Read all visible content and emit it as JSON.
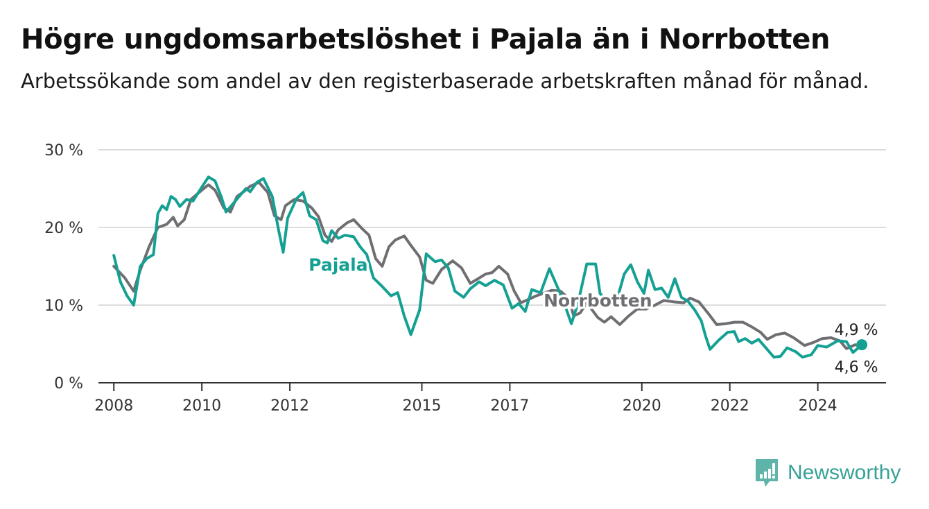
{
  "title": "Högre ungdomsarbetslöshet i Pajala än i Norrbotten",
  "subtitle": "Arbetssökande som andel av den registerbaserade arbetskraften månad för månad.",
  "brand": {
    "name": "Newsworthy",
    "color": "#36a195"
  },
  "chart_data": {
    "type": "line",
    "ylim": [
      0,
      30
    ],
    "yticks": [
      {
        "value": 0,
        "label": "0 %"
      },
      {
        "value": 10,
        "label": "10 %"
      },
      {
        "value": 20,
        "label": "20 %"
      },
      {
        "value": 30,
        "label": "30 %"
      }
    ],
    "xlim": [
      2007.65,
      2025.55
    ],
    "xticks": [
      {
        "value": 2008,
        "label": "2008"
      },
      {
        "value": 2010,
        "label": "2010"
      },
      {
        "value": 2012,
        "label": "2012"
      },
      {
        "value": 2015,
        "label": "2015"
      },
      {
        "value": 2017,
        "label": "2017"
      },
      {
        "value": 2020,
        "label": "2020"
      },
      {
        "value": 2022,
        "label": "2022"
      },
      {
        "value": 2024,
        "label": "2024"
      }
    ],
    "grid": true,
    "series": [
      {
        "name": "Norrbotten",
        "color": "#6f6e72",
        "end_label": "4,6 %",
        "points": [
          [
            2008.0,
            15.0
          ],
          [
            2008.25,
            13.5
          ],
          [
            2008.45,
            11.8
          ],
          [
            2008.6,
            14.5
          ],
          [
            2008.8,
            17.5
          ],
          [
            2009.0,
            20.0
          ],
          [
            2009.2,
            20.4
          ],
          [
            2009.35,
            21.3
          ],
          [
            2009.45,
            20.2
          ],
          [
            2009.6,
            21.0
          ],
          [
            2009.75,
            23.6
          ],
          [
            2010.0,
            24.8
          ],
          [
            2010.15,
            25.5
          ],
          [
            2010.3,
            24.8
          ],
          [
            2010.5,
            22.5
          ],
          [
            2010.65,
            22.0
          ],
          [
            2010.8,
            24.0
          ],
          [
            2010.95,
            24.6
          ],
          [
            2011.1,
            25.3
          ],
          [
            2011.3,
            25.8
          ],
          [
            2011.5,
            24.5
          ],
          [
            2011.65,
            21.5
          ],
          [
            2011.8,
            21.0
          ],
          [
            2011.9,
            22.8
          ],
          [
            2012.1,
            23.6
          ],
          [
            2012.3,
            23.4
          ],
          [
            2012.5,
            22.5
          ],
          [
            2012.65,
            21.4
          ],
          [
            2012.8,
            19.0
          ],
          [
            2012.95,
            18.2
          ],
          [
            2013.1,
            19.7
          ],
          [
            2013.3,
            20.6
          ],
          [
            2013.45,
            21.0
          ],
          [
            2013.65,
            19.8
          ],
          [
            2013.8,
            19.0
          ],
          [
            2013.95,
            16.0
          ],
          [
            2014.1,
            15.0
          ],
          [
            2014.25,
            17.5
          ],
          [
            2014.4,
            18.4
          ],
          [
            2014.6,
            18.9
          ],
          [
            2014.75,
            17.7
          ],
          [
            2014.95,
            16.2
          ],
          [
            2015.1,
            13.2
          ],
          [
            2015.25,
            12.8
          ],
          [
            2015.45,
            14.6
          ],
          [
            2015.7,
            15.7
          ],
          [
            2015.9,
            14.8
          ],
          [
            2016.1,
            12.8
          ],
          [
            2016.25,
            13.3
          ],
          [
            2016.45,
            14.0
          ],
          [
            2016.6,
            14.2
          ],
          [
            2016.75,
            15.0
          ],
          [
            2016.95,
            14.0
          ],
          [
            2017.1,
            11.8
          ],
          [
            2017.25,
            10.3
          ],
          [
            2017.45,
            10.8
          ],
          [
            2017.6,
            11.2
          ],
          [
            2017.75,
            11.5
          ],
          [
            2017.95,
            11.9
          ],
          [
            2018.15,
            11.8
          ],
          [
            2018.35,
            10.8
          ],
          [
            2018.45,
            8.6
          ],
          [
            2018.6,
            9.0
          ],
          [
            2018.75,
            10.3
          ],
          [
            2019.0,
            8.4
          ],
          [
            2019.15,
            7.8
          ],
          [
            2019.3,
            8.5
          ],
          [
            2019.5,
            7.5
          ],
          [
            2019.7,
            8.6
          ],
          [
            2019.9,
            9.5
          ],
          [
            2020.1,
            9.5
          ],
          [
            2020.3,
            10.0
          ],
          [
            2020.5,
            10.6
          ],
          [
            2020.75,
            10.4
          ],
          [
            2020.95,
            10.3
          ],
          [
            2021.1,
            10.9
          ],
          [
            2021.3,
            10.4
          ],
          [
            2021.5,
            9.0
          ],
          [
            2021.7,
            7.5
          ],
          [
            2021.9,
            7.6
          ],
          [
            2022.1,
            7.8
          ],
          [
            2022.3,
            7.8
          ],
          [
            2022.5,
            7.2
          ],
          [
            2022.7,
            6.5
          ],
          [
            2022.85,
            5.6
          ],
          [
            2023.05,
            6.2
          ],
          [
            2023.25,
            6.4
          ],
          [
            2023.45,
            5.8
          ],
          [
            2023.7,
            4.8
          ],
          [
            2023.9,
            5.2
          ],
          [
            2024.1,
            5.7
          ],
          [
            2024.3,
            5.8
          ],
          [
            2024.5,
            5.4
          ],
          [
            2024.65,
            4.4
          ],
          [
            2024.85,
            4.9
          ],
          [
            2025.0,
            4.6
          ]
        ]
      },
      {
        "name": "Pajala",
        "color": "#14a093",
        "end_label": "4,9 %",
        "points": [
          [
            2008.0,
            16.4
          ],
          [
            2008.15,
            13.0
          ],
          [
            2008.3,
            11.2
          ],
          [
            2008.45,
            10.0
          ],
          [
            2008.6,
            15.0
          ],
          [
            2008.75,
            16.0
          ],
          [
            2008.9,
            16.5
          ],
          [
            2009.0,
            21.8
          ],
          [
            2009.1,
            22.8
          ],
          [
            2009.2,
            22.3
          ],
          [
            2009.3,
            24.0
          ],
          [
            2009.4,
            23.6
          ],
          [
            2009.5,
            22.7
          ],
          [
            2009.65,
            23.6
          ],
          [
            2009.8,
            23.4
          ],
          [
            2010.0,
            25.2
          ],
          [
            2010.15,
            26.5
          ],
          [
            2010.3,
            26.0
          ],
          [
            2010.45,
            23.8
          ],
          [
            2010.55,
            22.0
          ],
          [
            2010.7,
            23.0
          ],
          [
            2010.85,
            24.0
          ],
          [
            2011.0,
            25.0
          ],
          [
            2011.1,
            24.6
          ],
          [
            2011.25,
            25.8
          ],
          [
            2011.4,
            26.3
          ],
          [
            2011.6,
            24.0
          ],
          [
            2011.75,
            19.5
          ],
          [
            2011.85,
            16.8
          ],
          [
            2011.95,
            21.2
          ],
          [
            2012.15,
            23.7
          ],
          [
            2012.3,
            24.5
          ],
          [
            2012.45,
            21.5
          ],
          [
            2012.6,
            21.0
          ],
          [
            2012.75,
            18.3
          ],
          [
            2012.85,
            18.0
          ],
          [
            2012.95,
            19.6
          ],
          [
            2013.1,
            18.6
          ],
          [
            2013.25,
            19.0
          ],
          [
            2013.45,
            18.8
          ],
          [
            2013.6,
            17.5
          ],
          [
            2013.75,
            16.5
          ],
          [
            2013.9,
            13.5
          ],
          [
            2014.1,
            12.4
          ],
          [
            2014.3,
            11.2
          ],
          [
            2014.45,
            11.6
          ],
          [
            2014.6,
            8.6
          ],
          [
            2014.75,
            6.2
          ],
          [
            2014.95,
            9.4
          ],
          [
            2015.1,
            16.6
          ],
          [
            2015.3,
            15.6
          ],
          [
            2015.45,
            15.8
          ],
          [
            2015.6,
            14.8
          ],
          [
            2015.75,
            11.8
          ],
          [
            2015.95,
            11.0
          ],
          [
            2016.1,
            12.1
          ],
          [
            2016.3,
            13.0
          ],
          [
            2016.45,
            12.5
          ],
          [
            2016.65,
            13.2
          ],
          [
            2016.85,
            12.6
          ],
          [
            2017.05,
            9.6
          ],
          [
            2017.2,
            10.2
          ],
          [
            2017.35,
            9.2
          ],
          [
            2017.5,
            12.0
          ],
          [
            2017.7,
            11.6
          ],
          [
            2017.9,
            14.7
          ],
          [
            2018.1,
            12.1
          ],
          [
            2018.25,
            10.0
          ],
          [
            2018.4,
            7.6
          ],
          [
            2018.55,
            10.3
          ],
          [
            2018.75,
            15.3
          ],
          [
            2018.95,
            15.3
          ],
          [
            2019.05,
            11.5
          ],
          [
            2019.25,
            10.3
          ],
          [
            2019.45,
            11.0
          ],
          [
            2019.6,
            14.0
          ],
          [
            2019.75,
            15.2
          ],
          [
            2019.9,
            13.0
          ],
          [
            2020.05,
            11.5
          ],
          [
            2020.15,
            14.5
          ],
          [
            2020.3,
            12.0
          ],
          [
            2020.45,
            12.2
          ],
          [
            2020.6,
            11.0
          ],
          [
            2020.75,
            13.4
          ],
          [
            2020.9,
            11.0
          ],
          [
            2021.05,
            10.5
          ],
          [
            2021.2,
            9.4
          ],
          [
            2021.35,
            8.0
          ],
          [
            2021.45,
            6.0
          ],
          [
            2021.55,
            4.3
          ],
          [
            2021.75,
            5.5
          ],
          [
            2021.95,
            6.5
          ],
          [
            2022.1,
            6.6
          ],
          [
            2022.2,
            5.3
          ],
          [
            2022.35,
            5.7
          ],
          [
            2022.5,
            5.1
          ],
          [
            2022.65,
            5.6
          ],
          [
            2022.85,
            4.3
          ],
          [
            2023.0,
            3.3
          ],
          [
            2023.15,
            3.4
          ],
          [
            2023.3,
            4.5
          ],
          [
            2023.5,
            4.0
          ],
          [
            2023.65,
            3.3
          ],
          [
            2023.85,
            3.6
          ],
          [
            2024.0,
            4.8
          ],
          [
            2024.2,
            4.6
          ],
          [
            2024.45,
            5.4
          ],
          [
            2024.65,
            5.3
          ],
          [
            2024.8,
            3.9
          ],
          [
            2025.0,
            4.9
          ]
        ]
      }
    ],
    "annotations": [
      {
        "text": "Pajala",
        "series": "Pajala",
        "x": 2013.1,
        "y": 14.4
      },
      {
        "text": "Norrbotten",
        "series": "Norrbotten",
        "x": 2019.0,
        "y": 9.8
      }
    ]
  }
}
